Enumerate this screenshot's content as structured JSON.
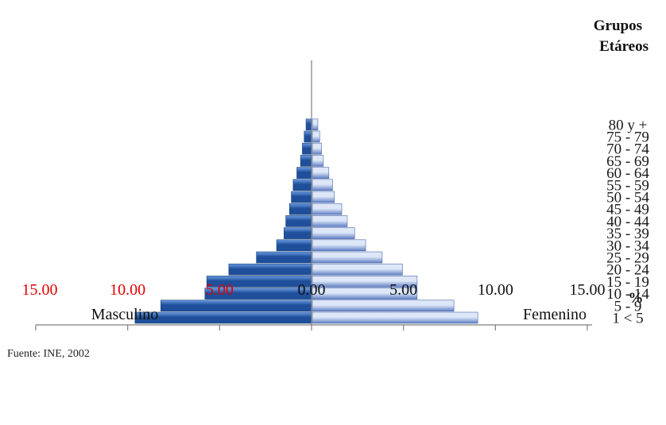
{
  "chart_data": {
    "type": "bar",
    "orientation": "horizontal-population-pyramid",
    "title": "",
    "legend_title_line1": "Grupos",
    "legend_title_line2": "Etáreos",
    "unit_symbol": "%",
    "left_label": "Masculino",
    "right_label": "Femenino",
    "source": "Fuente: INE, 2002",
    "xlim": [
      -15,
      15
    ],
    "ticks": [
      {
        "value": -15,
        "label": "15.00",
        "color": "#e00000"
      },
      {
        "value": -10,
        "label": "10.00",
        "color": "#e00000"
      },
      {
        "value": -5,
        "label": "5.00",
        "color": "#e00000"
      },
      {
        "value": 0,
        "label": "0.00",
        "color": "#111111"
      },
      {
        "value": 5,
        "label": "5.00",
        "color": "#111111"
      },
      {
        "value": 10,
        "label": "10.00",
        "color": "#111111"
      },
      {
        "value": 15,
        "label": "15.00",
        "color": "#111111"
      }
    ],
    "categories": [
      "1 < 5",
      "5 - 9",
      "10 - 14",
      "15 - 19",
      "20 - 24",
      "25 - 29",
      "30 - 34",
      "35 - 39",
      "40 - 44",
      "45 - 49",
      "50 - 54",
      "55 - 59",
      "60 - 64",
      "65 - 69",
      "70 - 74",
      "75 - 79",
      "80 y +"
    ],
    "series": [
      {
        "name": "Masculino",
        "side": "left",
        "color_dark": "#1f4f9a",
        "color_light": "#6b9be0",
        "values": [
          9.6,
          8.2,
          5.8,
          5.7,
          4.5,
          3.0,
          1.9,
          1.5,
          1.4,
          1.2,
          1.1,
          1.0,
          0.8,
          0.6,
          0.5,
          0.4,
          0.3
        ]
      },
      {
        "name": "Femenino",
        "side": "right",
        "color_dark": "#5f7fc4",
        "color_light": "#dde7f8",
        "values": [
          9.0,
          7.7,
          5.7,
          5.7,
          4.9,
          3.8,
          2.9,
          2.3,
          1.9,
          1.6,
          1.2,
          1.1,
          0.9,
          0.6,
          0.5,
          0.4,
          0.3
        ]
      }
    ],
    "grid": false
  }
}
